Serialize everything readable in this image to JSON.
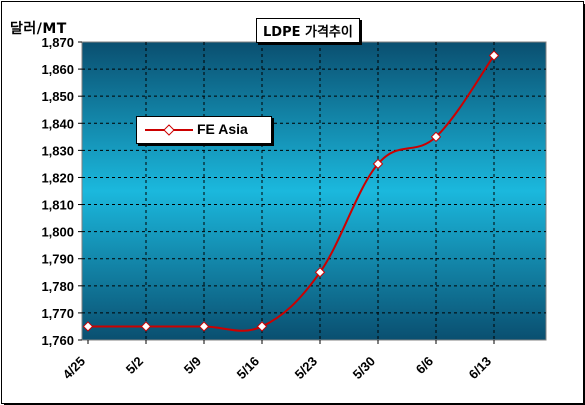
{
  "chart_data": {
    "type": "line",
    "title": "LDPE 가격추이",
    "ylabel": "달러/MT",
    "xlabel": "",
    "categories": [
      "4/25",
      "5/2",
      "5/9",
      "5/16",
      "5/23",
      "5/30",
      "6/6",
      "6/13"
    ],
    "series": [
      {
        "name": "FE Asia",
        "values": [
          1765,
          1765,
          1765,
          1765,
          1785,
          1825,
          1835,
          1865
        ],
        "color": "#cc0000"
      }
    ],
    "ylim": [
      1760,
      1870
    ],
    "yticks": [
      "1,760",
      "1,770",
      "1,780",
      "1,790",
      "1,800",
      "1,810",
      "1,820",
      "1,830",
      "1,840",
      "1,850",
      "1,860",
      "1,870"
    ],
    "grid": true,
    "legend": "top-left",
    "plot_gradient": [
      "#0a4f70",
      "#1bb8dd",
      "#0a4f70"
    ]
  }
}
